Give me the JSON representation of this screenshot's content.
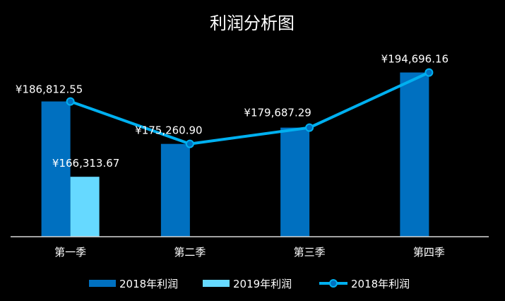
{
  "chart_data": {
    "type": "bar",
    "title": "利润分析图",
    "categories": [
      "第一季",
      "第二季",
      "第三季",
      "第四季"
    ],
    "series": [
      {
        "name": "2018年利润",
        "kind": "bar",
        "color": "#0070c0",
        "values": [
          186812.55,
          175260.9,
          179687.29,
          194696.16
        ],
        "labels": [
          "¥186,812.55",
          "¥175,260.90",
          "¥179,687.29",
          "¥194,696.16"
        ]
      },
      {
        "name": "2019年利润",
        "kind": "bar",
        "color": "#66d9ff",
        "values": [
          166313.67,
          null,
          null,
          null
        ],
        "labels": [
          "¥166,313.67",
          null,
          null,
          null
        ]
      },
      {
        "name": "2018年利润",
        "kind": "line",
        "color": "#00b0f0",
        "values": [
          186812.55,
          175260.9,
          179687.29,
          194696.16
        ]
      }
    ],
    "ylim": [
      150000,
      200000
    ],
    "xlabel": "",
    "ylabel": "",
    "grid": false,
    "legend": "bottom"
  }
}
